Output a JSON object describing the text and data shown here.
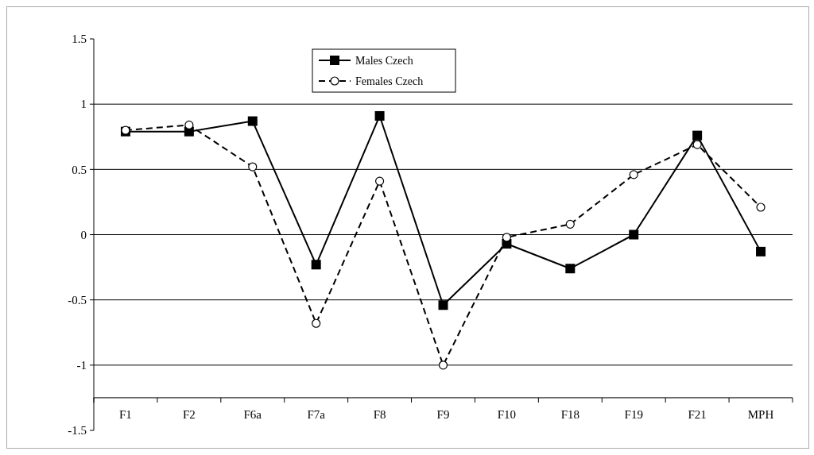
{
  "chart_data": {
    "type": "line",
    "categories": [
      "F1",
      "F2",
      "F6a",
      "F7a",
      "F8",
      "F9",
      "F10",
      "F18",
      "F19",
      "F21",
      "MPH"
    ],
    "series": [
      {
        "name": "Males Czech",
        "color": "#000000",
        "marker": "square",
        "line_style": "solid",
        "values": [
          0.79,
          0.79,
          0.87,
          -0.23,
          0.91,
          -0.54,
          -0.07,
          -0.26,
          0,
          0.76,
          -0.13
        ]
      },
      {
        "name": "Females Czech",
        "color": "#000000",
        "marker": "circle",
        "line_style": "dashed",
        "values": [
          0.8,
          0.84,
          0.52,
          -0.68,
          0.41,
          -1.0,
          -0.02,
          0.08,
          0.46,
          0.69,
          0.21
        ]
      }
    ],
    "ylim": [
      -1.5,
      1.5
    ],
    "yticks": [
      -1.5,
      -1,
      -0.5,
      0,
      0.5,
      1,
      1.5
    ],
    "grid": "y",
    "legend": "top",
    "ref_lines": [
      {
        "axis": "y",
        "value": -1.25,
        "color": "#000000"
      }
    ]
  }
}
